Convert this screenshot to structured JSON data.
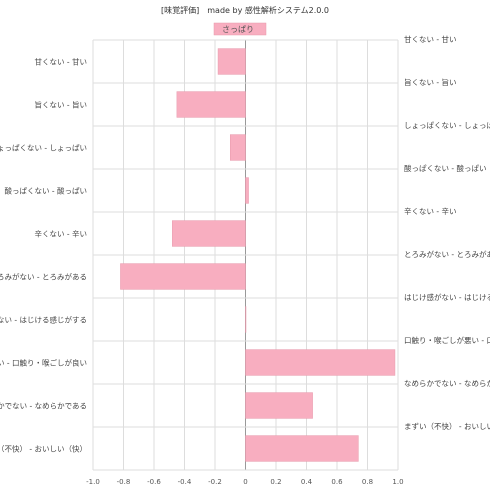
{
  "chart_data": {
    "type": "bar",
    "orientation": "horizontal",
    "title": "[味覚評価]　made by 感性解析システム2.0.0",
    "series": [
      {
        "name": "さっぱり",
        "color": "#f8aec0",
        "values": [
          -0.18,
          -0.45,
          -0.1,
          0.02,
          -0.48,
          -0.82,
          0.0,
          0.98,
          0.44,
          0.74
        ]
      }
    ],
    "labels_left": [
      "甘くない - 甘い",
      "旨くない - 旨い",
      "しょっぱくない - しょっぱい",
      "酸っぱくない - 酸っぱい",
      "辛くない - 辛い",
      "とろみがない - とろみがある",
      "はじけない - はじける感じがする",
      "口触りが悪い - 口触り・喉ごしが良い",
      "なめらかでない - なめらかである",
      "まずい（不快） - おいしい（快）"
    ],
    "labels_right": [
      "甘くない - 甘い",
      "旨くない - 旨い",
      "しょっぱくない - しょっぱい",
      "酸っぱくない - 酸っぱい",
      "辛くない - 辛い",
      "とろみがない - とろみがある",
      "はじけ感がない - はじける感じがする",
      "口触り・喉ごしが悪い - 口触り・喉ごしが良い",
      "なめらかでない - なめらかである",
      "まずい（不快） - おいしい（快）"
    ],
    "xlim": [
      -1.0,
      1.0
    ],
    "xticks": [
      "-1.0",
      "-0.8",
      "-0.6",
      "-0.4",
      "-0.2",
      "0",
      "0.2",
      "0.4",
      "0.6",
      "0.8",
      "1.0"
    ],
    "grid": true,
    "legend_position": "top"
  }
}
